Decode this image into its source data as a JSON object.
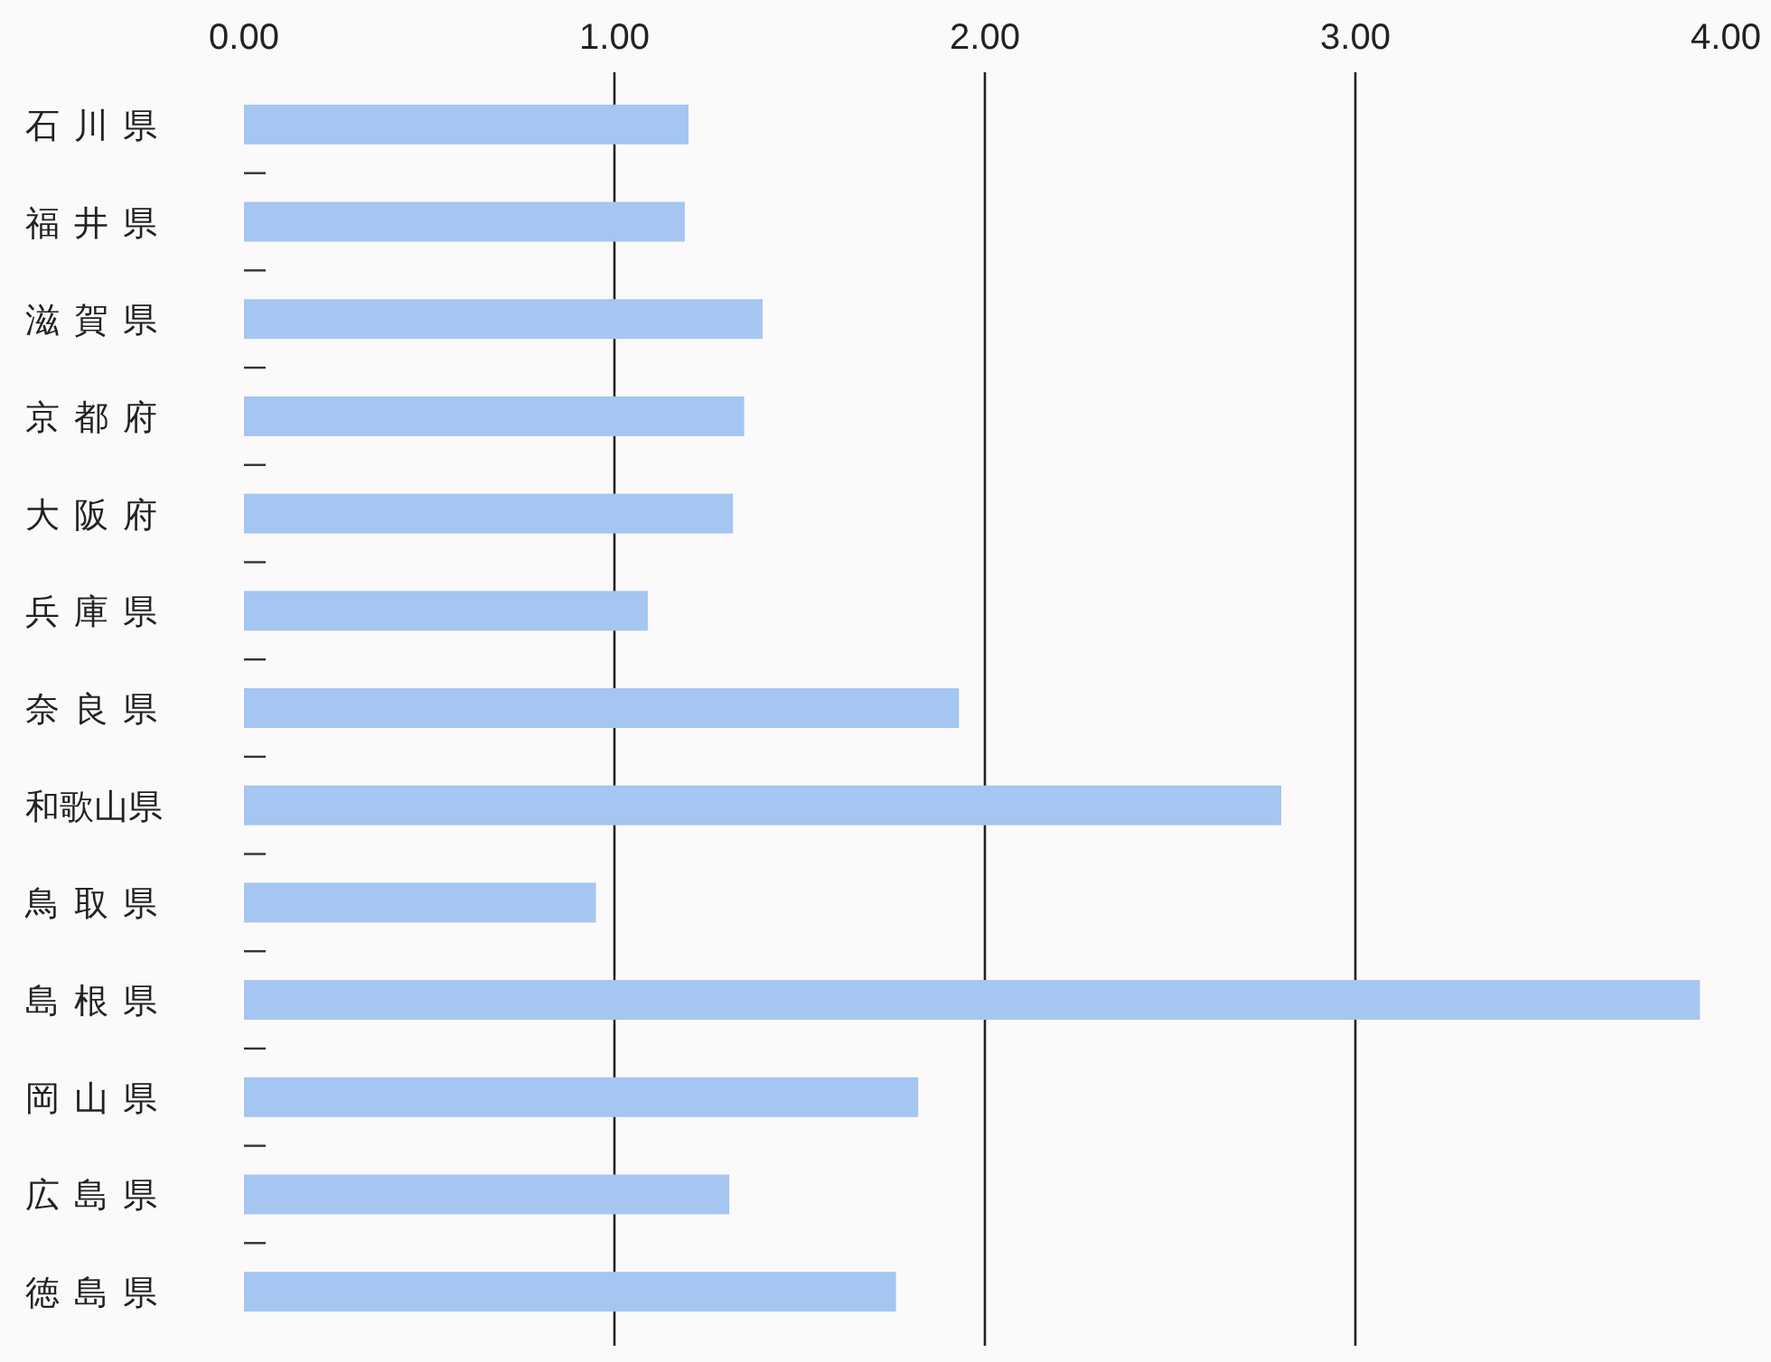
{
  "chart_data": {
    "type": "bar",
    "orientation": "horizontal",
    "categories": [
      "石川県",
      "福井県",
      "滋賀県",
      "京都府",
      "大阪府",
      "兵庫県",
      "奈良県",
      "和歌山県",
      "鳥取県",
      "島根県",
      "岡山県",
      "広島県",
      "徳島県"
    ],
    "values": [
      1.2,
      1.19,
      1.4,
      1.35,
      1.32,
      1.09,
      1.93,
      2.8,
      0.95,
      3.93,
      1.82,
      1.31,
      1.76
    ],
    "color": "#a4c6f0",
    "xlim": [
      0,
      4
    ],
    "xticks": [
      {
        "value": 0,
        "label": "0.00"
      },
      {
        "value": 1,
        "label": "1.00"
      },
      {
        "value": 2,
        "label": "2.00"
      },
      {
        "value": 3,
        "label": "3.00"
      },
      {
        "value": 4,
        "label": "4.00"
      }
    ],
    "grid": "x"
  }
}
